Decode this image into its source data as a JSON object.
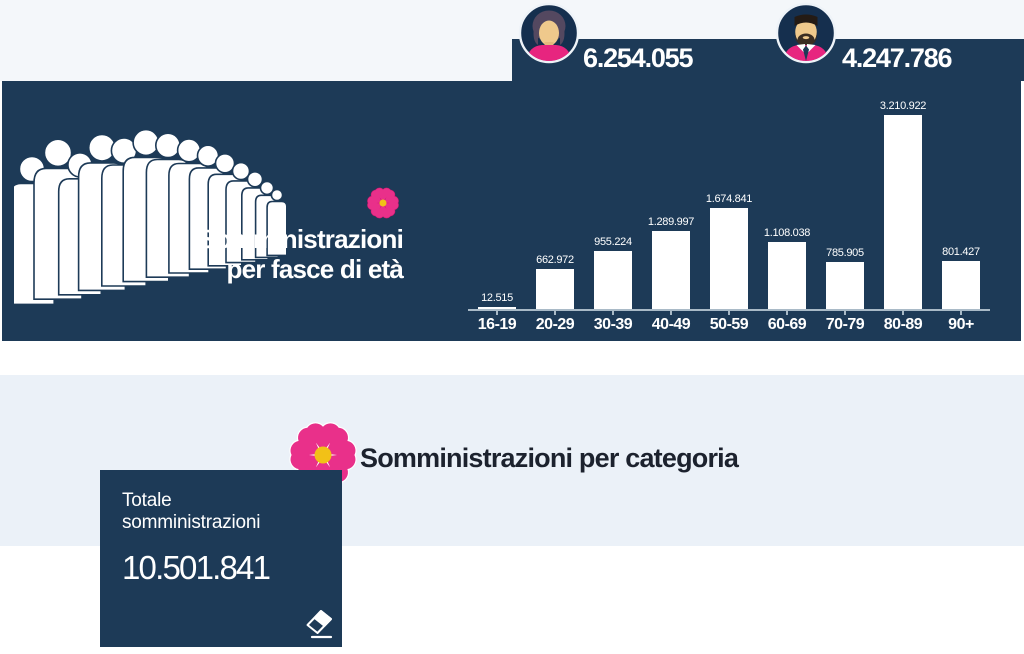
{
  "gender_totals": {
    "female": "6.254.055",
    "male": "4.247.786"
  },
  "age_section": {
    "title_line1": "Somministrazioni",
    "title_line2": "per fasce di età"
  },
  "chart_data": {
    "type": "bar",
    "title": "Somministrazioni per fasce di età",
    "categories": [
      "16-19",
      "20-29",
      "30-39",
      "40-49",
      "50-59",
      "60-69",
      "70-79",
      "80-89",
      "90+"
    ],
    "values": [
      12515,
      662972,
      955224,
      1289997,
      1674841,
      1108038,
      785905,
      3210922,
      801427
    ],
    "value_labels": [
      "12.515",
      "662.972",
      "955.224",
      "1.289.997",
      "1.674.841",
      "1.108.038",
      "785.905",
      "3.210.922",
      "801.427"
    ],
    "xlabel": "",
    "ylabel": "",
    "ylim": [
      0,
      3210922
    ],
    "grid": false,
    "legend": "none",
    "bar_color": "#ffffff"
  },
  "category_section": {
    "title": "Somministrazioni per categoria"
  },
  "total_card": {
    "label": "Totale somministrazioni",
    "value": "10.501.841"
  },
  "icons": {
    "female": "female-avatar-icon",
    "male": "male-avatar-icon",
    "flower": "flower-icon",
    "crowd": "crowd-queue-illustration",
    "eraser": "eraser-icon"
  },
  "colors": {
    "panel_navy": "#1d3a57",
    "avatar_disk_navy": "#152f4e",
    "accent_pink": "#e7257f",
    "flower_pink": "#e9308a",
    "flower_yellow": "#f2c117",
    "bar_white": "#ffffff",
    "band_top": "#f4f7fa",
    "band_mid": "#ebf1f8",
    "axis_gray": "#a9bac7",
    "heading_dark": "#1c222e"
  }
}
